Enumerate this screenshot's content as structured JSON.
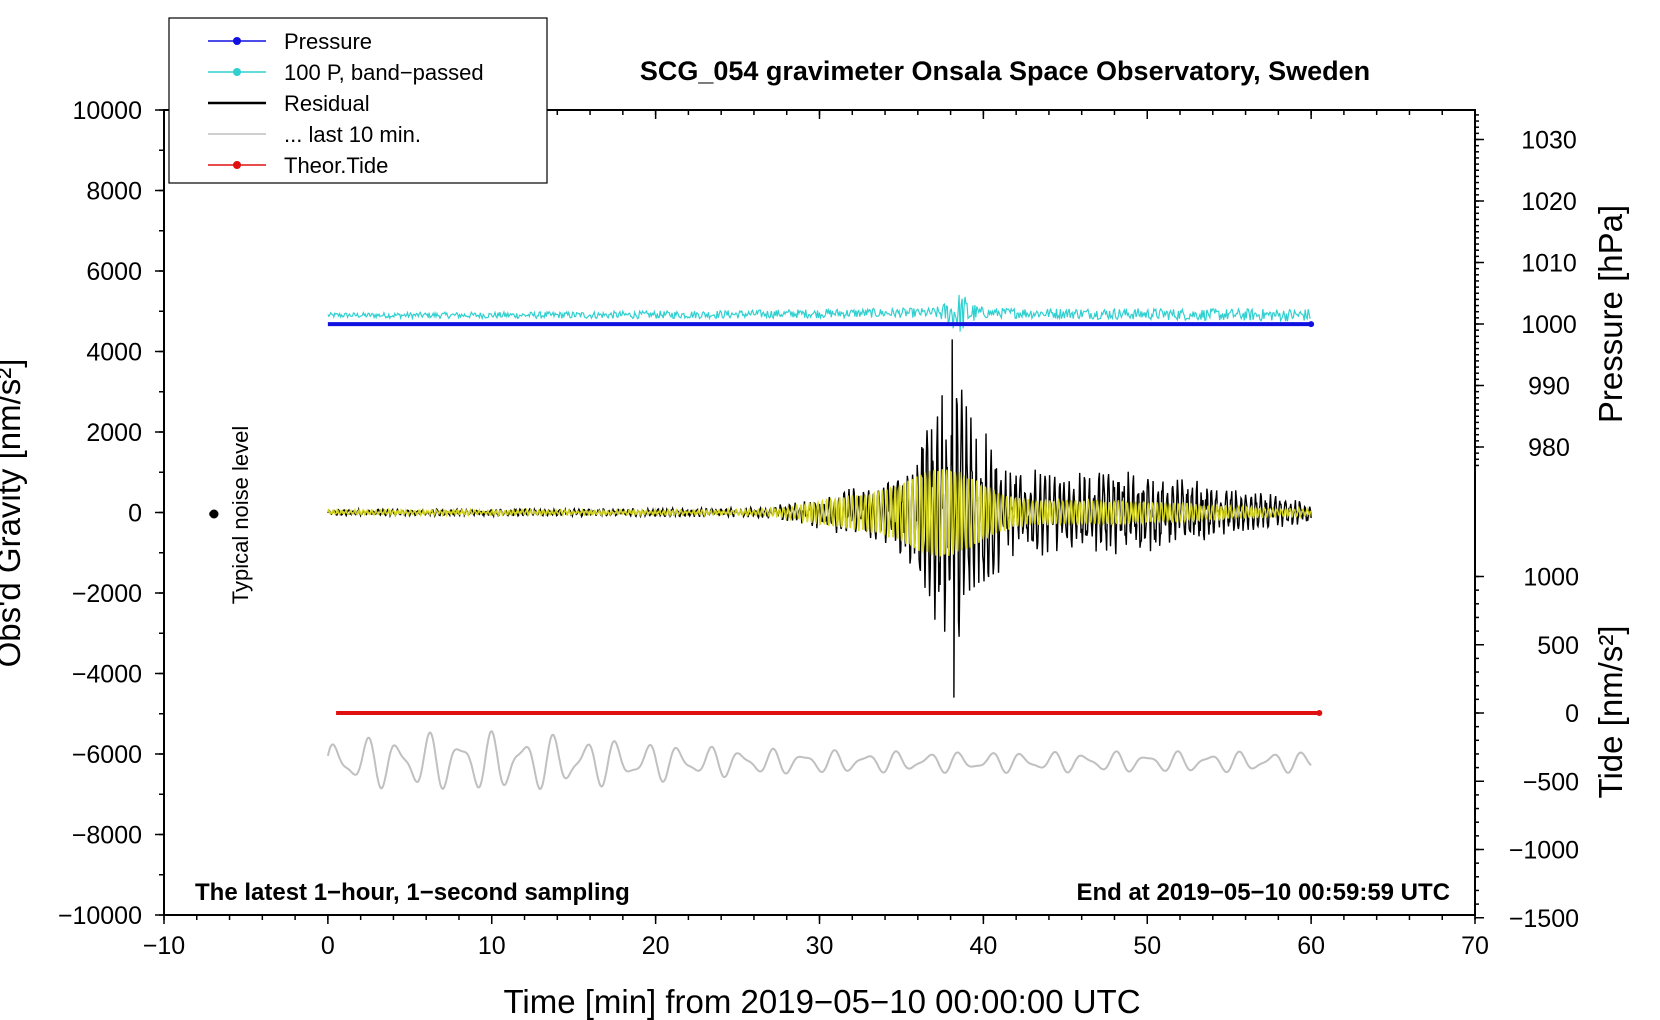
{
  "chart_data": {
    "type": "line",
    "title": "SCG_054 gravimeter Onsala Space Observatory, Sweden",
    "xlabel": "Time [min] from 2019−05−10 00:00:00 UTC",
    "ylabel_left": "Obs'd Gravity [nm/s²]",
    "ylabel_right_top": "Pressure [hPa]",
    "ylabel_right_bottom": "Tide [nm/s²]",
    "xlim": [
      -10,
      70
    ],
    "ylim": [
      -10000,
      10000
    ],
    "pressure_axis": {
      "ticks": [
        980,
        990,
        1000,
        1010,
        1020,
        1030
      ],
      "tick_labels": [
        "980",
        "990",
        "1000",
        "1010",
        "1020",
        "1030"
      ]
    },
    "tide_axis": {
      "ticks": [
        -1500,
        -1000,
        -500,
        0,
        500,
        1000
      ],
      "tick_labels": [
        "−1500",
        "−1000",
        "−500",
        "0",
        "500",
        "1000"
      ]
    },
    "x_ticks": [
      -10,
      0,
      10,
      20,
      30,
      40,
      50,
      60,
      70
    ],
    "x_tick_labels": [
      "−10",
      "0",
      "10",
      "20",
      "30",
      "40",
      "50",
      "60",
      "70"
    ],
    "y_ticks": [
      -10000,
      -8000,
      -6000,
      -4000,
      -2000,
      0,
      2000,
      4000,
      6000,
      8000,
      10000
    ],
    "y_tick_labels": [
      "−10000",
      "−8000",
      "−6000",
      "−4000",
      "−2000",
      "0",
      "2000",
      "4000",
      "6000",
      "8000",
      "10000"
    ],
    "legend": [
      {
        "label": "Pressure",
        "color": "#1010e0",
        "marker": true
      },
      {
        "label": "100 P, band−passed",
        "color": "#30d0d0",
        "marker": true
      },
      {
        "label": "Residual",
        "color": "#000000",
        "marker": false
      },
      {
        "label": "... last 10 min.",
        "color": "#c0c0c0",
        "marker": false
      },
      {
        "label": "Theor.Tide",
        "color": "#e01010",
        "marker": true
      }
    ],
    "series": [
      {
        "name": "Pressure",
        "color": "#1010e0",
        "axis": "left",
        "x_range": [
          0,
          60
        ],
        "level": 4680,
        "pressure_hpa": 1000
      },
      {
        "name": "100 P, band−passed",
        "color": "#30d0d0",
        "axis": "left",
        "x_range": [
          0,
          60
        ],
        "level": 4900,
        "peak_min": 38.5,
        "peak_amplitude": 500
      },
      {
        "name": "Residual",
        "color": "#000000",
        "axis": "left",
        "x_range": [
          0,
          60
        ],
        "level": 0,
        "peak_min": 38.2,
        "max": 4300,
        "min": -4600
      },
      {
        "name": "Residual (filtered)",
        "color": "#d8d820",
        "axis": "left",
        "x_range": [
          0,
          60
        ],
        "level": 0,
        "peak_min": 37.5,
        "peak_amplitude": 900
      },
      {
        "name": "... last 10 min.",
        "color": "#c0c0c0",
        "axis": "left",
        "x_range": [
          0,
          60
        ],
        "level": -6200,
        "peak_amplitude": 700
      },
      {
        "name": "Theor.Tide",
        "color": "#e01010",
        "axis": "tide",
        "x_range": [
          0.5,
          60.5
        ],
        "value": 0
      }
    ],
    "noise_marker": {
      "x": -7,
      "y": 0,
      "label": "Typical noise level"
    },
    "annotations": {
      "bottom_left": "The latest 1−hour, 1−second sampling",
      "bottom_right": "End at 2019−05−10 00:59:59 UTC"
    }
  }
}
